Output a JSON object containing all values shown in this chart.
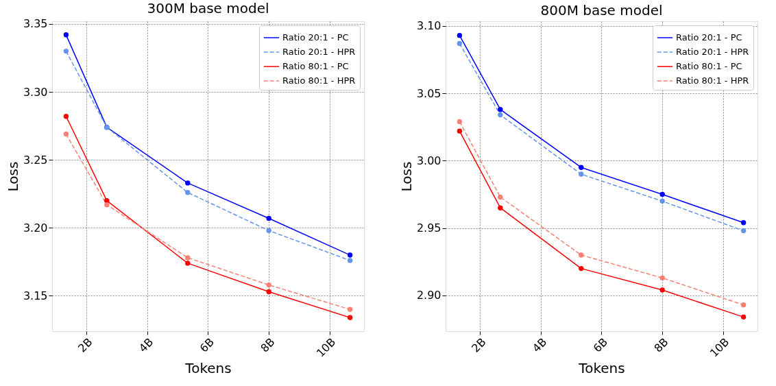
{
  "chart_data": [
    {
      "type": "line",
      "title": "300M base model",
      "xlabel": "Tokens",
      "ylabel": "Loss",
      "x": [
        1.33,
        2.67,
        5.33,
        8,
        10.67
      ],
      "xlim": [
        0.87,
        11.13
      ],
      "xticks": [
        {
          "value": 2,
          "label": "2B"
        },
        {
          "value": 4,
          "label": "4B"
        },
        {
          "value": 6,
          "label": "6B"
        },
        {
          "value": 8,
          "label": "8B"
        },
        {
          "value": 10,
          "label": "10B"
        }
      ],
      "ylim": [
        3.124,
        3.352
      ],
      "yticks": [
        {
          "value": 3.15,
          "label": "3.15"
        },
        {
          "value": 3.2,
          "label": "3.20"
        },
        {
          "value": 3.25,
          "label": "3.25"
        },
        {
          "value": 3.3,
          "label": "3.30"
        },
        {
          "value": 3.35,
          "label": "3.35"
        }
      ],
      "grid": true,
      "legend": "top right",
      "marker": "circle",
      "series": [
        {
          "name": "Ratio 20:1 - PC",
          "color": "#0000ff",
          "line_style": "solid",
          "values": [
            3.342,
            3.274,
            3.233,
            3.207,
            3.18
          ]
        },
        {
          "name": "Ratio 20:1 - HPR",
          "color": "#6495ed",
          "line_style": "dashed",
          "values": [
            3.33,
            3.274,
            3.226,
            3.198,
            3.176
          ]
        },
        {
          "name": "Ratio 80:1 - PC",
          "color": "#ff0000",
          "line_style": "solid",
          "values": [
            3.282,
            3.22,
            3.174,
            3.153,
            3.134
          ]
        },
        {
          "name": "Ratio 80:1 - HPR",
          "color": "#fa8072",
          "line_style": "dashed",
          "values": [
            3.269,
            3.217,
            3.178,
            3.158,
            3.14
          ]
        }
      ]
    },
    {
      "type": "line",
      "title": "800M base model",
      "xlabel": "Tokens",
      "ylabel": "Loss",
      "x": [
        1.33,
        2.67,
        5.33,
        8,
        10.67
      ],
      "xlim": [
        0.87,
        11.13
      ],
      "xticks": [
        {
          "value": 2,
          "label": "2B"
        },
        {
          "value": 4,
          "label": "4B"
        },
        {
          "value": 6,
          "label": "6B"
        },
        {
          "value": 8,
          "label": "8B"
        },
        {
          "value": 10,
          "label": "10B"
        }
      ],
      "ylim": [
        2.8735,
        3.1035
      ],
      "yticks": [
        {
          "value": 2.9,
          "label": "2.90"
        },
        {
          "value": 2.95,
          "label": "2.95"
        },
        {
          "value": 3.0,
          "label": "3.00"
        },
        {
          "value": 3.05,
          "label": "3.05"
        },
        {
          "value": 3.1,
          "label": "3.10"
        }
      ],
      "grid": true,
      "legend": "top right",
      "marker": "circle",
      "series": [
        {
          "name": "Ratio 20:1 - PC",
          "color": "#0000ff",
          "line_style": "solid",
          "values": [
            3.093,
            3.038,
            2.995,
            2.975,
            2.954
          ]
        },
        {
          "name": "Ratio 20:1 - HPR",
          "color": "#6495ed",
          "line_style": "dashed",
          "values": [
            3.087,
            3.034,
            2.99,
            2.97,
            2.948
          ]
        },
        {
          "name": "Ratio 80:1 - PC",
          "color": "#ff0000",
          "line_style": "solid",
          "values": [
            3.022,
            2.965,
            2.92,
            2.904,
            2.884
          ]
        },
        {
          "name": "Ratio 80:1 - HPR",
          "color": "#fa8072",
          "line_style": "dashed",
          "values": [
            3.029,
            2.973,
            2.93,
            2.913,
            2.893
          ]
        }
      ]
    }
  ]
}
